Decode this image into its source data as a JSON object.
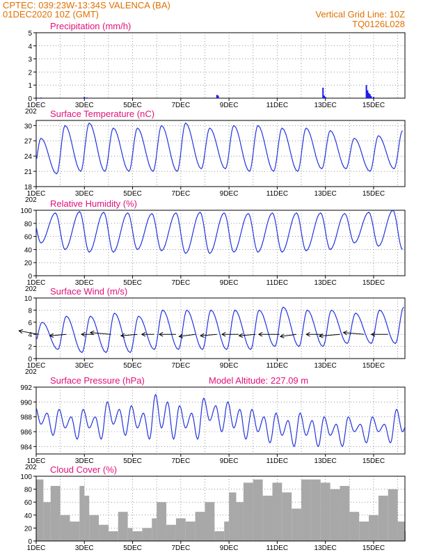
{
  "header": {
    "line1": "CPTEC:   039:23W-13:34S   VALENCA (BA)",
    "line2": "01DEC2020 10Z (GMT)",
    "grid_note": "Vertical Grid Line: 10Z",
    "model_code": "TQ0126L028"
  },
  "x_axis": {
    "labels": [
      "1DEC",
      "3DEC",
      "5DEC",
      "7DEC",
      "9DEC",
      "11DEC",
      "13DEC",
      "15DEC"
    ],
    "year_fragment": "202",
    "start_day": 1,
    "end_day": 16.3,
    "label_every_days": 2,
    "grid_every_days": 1
  },
  "chart_data": [
    {
      "type": "bar",
      "title": "Precipitation (mm/h)",
      "ylim": [
        0,
        5
      ],
      "yticks": [
        0,
        1,
        2,
        3,
        4,
        5
      ],
      "color": "#1a1aee",
      "x_unit": "days",
      "x": [
        1.2,
        3.0,
        3.1,
        8.5,
        8.55,
        12.9,
        12.95,
        13.0,
        14.7,
        14.75,
        14.8,
        14.85,
        14.9,
        15.0
      ],
      "values": [
        0.05,
        0.1,
        0.05,
        0.25,
        0.2,
        0.8,
        0.2,
        0.1,
        1.0,
        0.6,
        0.4,
        0.3,
        0.15,
        0.1
      ]
    },
    {
      "type": "line",
      "title": "Surface Temperature (nC)",
      "ylim": [
        18,
        31
      ],
      "yticks": [
        18,
        21,
        24,
        27,
        30
      ],
      "color": "#2233dd",
      "series": {
        "start_day": 1,
        "min_values": [
          19.5,
          20.5,
          21,
          21,
          21,
          21,
          21,
          21.5,
          21.5,
          21,
          21,
          21,
          21.5,
          21.5,
          21,
          21.5
        ],
        "max_values": [
          27.5,
          30,
          30.5,
          29.5,
          29.5,
          30,
          30.5,
          29.5,
          30,
          30,
          29.5,
          29.5,
          29,
          27.5,
          28,
          29
        ]
      }
    },
    {
      "type": "line",
      "title": "Relative Humidity (%)",
      "ylim": [
        0,
        100
      ],
      "yticks": [
        0,
        20,
        40,
        60,
        80,
        100
      ],
      "color": "#2233dd",
      "series": {
        "start_day": 1,
        "max_values": [
          100,
          96,
          98,
          97,
          96,
          95,
          96,
          97,
          96,
          95,
          96,
          96,
          96,
          95,
          97,
          100
        ],
        "min_values": [
          50,
          40,
          36,
          36,
          40,
          38,
          34,
          34,
          36,
          36,
          36,
          38,
          40,
          50,
          45,
          40
        ]
      }
    },
    {
      "type": "line",
      "title": "Surface Wind (m/s)",
      "ylim": [
        0,
        10
      ],
      "yticks": [
        0,
        2,
        4,
        6,
        8,
        10
      ],
      "color": "#2233dd",
      "series": {
        "start_day": 1,
        "peak_values": [
          6,
          7,
          7,
          7.5,
          7,
          8,
          8,
          8,
          8,
          8,
          8.5,
          8,
          8,
          7.5,
          8,
          8.5
        ],
        "low_values": [
          2,
          1.5,
          1,
          1,
          1,
          1.5,
          1.5,
          1.5,
          1.5,
          1.5,
          2,
          2,
          2,
          2.5,
          2.5,
          2.5
        ]
      },
      "wind_vectors": {
        "x_days": [
          1.1,
          2.25,
          3.4,
          4.1,
          5.2,
          5.9,
          6.8,
          7.6,
          8.5,
          9.4,
          10.1,
          11.1,
          11.8,
          12.9,
          13.6,
          14.6,
          15.6
        ],
        "speed_ms": [
          5,
          4,
          3,
          5,
          4,
          3,
          4,
          4,
          4,
          4,
          4,
          5,
          4,
          4,
          5,
          5,
          4
        ],
        "dir_deg": [
          110,
          80,
          90,
          100,
          80,
          90,
          90,
          75,
          80,
          90,
          80,
          90,
          75,
          90,
          80,
          100,
          90
        ]
      }
    },
    {
      "type": "line",
      "title": "Surface Pressure (hPa)",
      "annotation": "Model Altitude: 227.09 m",
      "ylim": [
        983,
        992
      ],
      "yticks": [
        984,
        986,
        988,
        990,
        992
      ],
      "color": "#2233dd",
      "series": {
        "start_day": 1,
        "high_values": [
          989.5,
          989.0,
          989.0,
          990.0,
          989.5,
          991.0,
          989.5,
          990.5,
          990.0,
          989.0,
          988.5,
          988.5,
          988.0,
          988.0,
          988.0,
          989.0
        ],
        "low_values": [
          985.5,
          985.0,
          985.0,
          985.5,
          985.0,
          985.0,
          985.0,
          986.0,
          985.0,
          984.5,
          984.0,
          984.0,
          984.0,
          984.5,
          984.5,
          984.5
        ]
      }
    },
    {
      "type": "area",
      "title": "Cloud Cover (%)",
      "ylim": [
        0,
        100
      ],
      "yticks": [
        0,
        20,
        40,
        60,
        80,
        100
      ],
      "color": "#a8a8a8",
      "series": {
        "x_days": [
          1.0,
          1.3,
          1.6,
          2.0,
          2.4,
          2.8,
          3.0,
          3.2,
          3.6,
          4.0,
          4.4,
          4.8,
          5.0,
          5.4,
          5.8,
          6.0,
          6.4,
          6.8,
          7.2,
          7.6,
          8.0,
          8.4,
          8.8,
          9.0,
          9.3,
          9.6,
          10.0,
          10.4,
          10.8,
          11.2,
          11.6,
          12.0,
          12.4,
          12.8,
          13.2,
          13.6,
          14.0,
          14.4,
          14.8,
          15.2,
          15.6,
          16.0,
          16.3
        ],
        "values": [
          95,
          60,
          85,
          40,
          30,
          85,
          70,
          40,
          25,
          15,
          45,
          20,
          15,
          20,
          35,
          60,
          25,
          35,
          30,
          45,
          60,
          15,
          30,
          75,
          60,
          90,
          95,
          70,
          90,
          75,
          50,
          95,
          95,
          90,
          80,
          85,
          45,
          30,
          40,
          70,
          80,
          30,
          15
        ]
      }
    }
  ]
}
